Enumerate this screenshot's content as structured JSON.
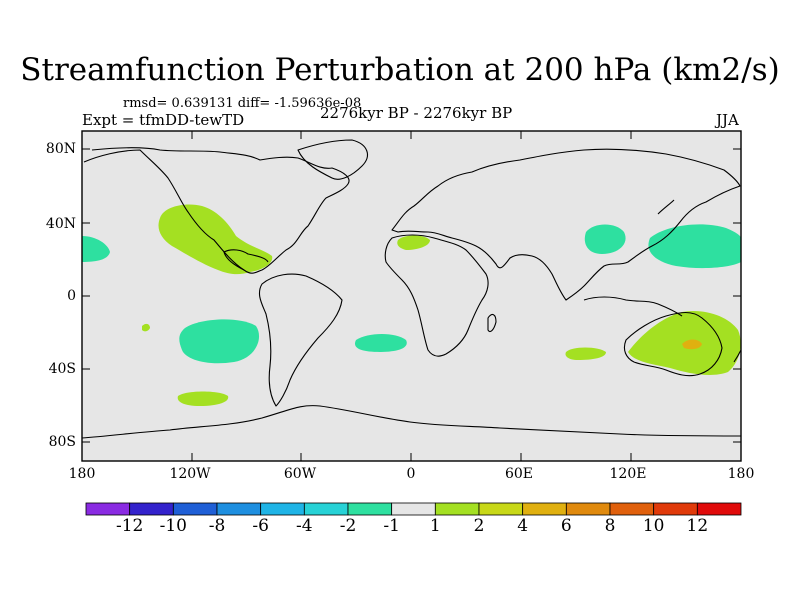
{
  "title": "Streamfunction Perturbation at 200 hPa (km2/s)",
  "stats_text": "rmsd= 0.639131 diff= -1.59636e-08",
  "experiment": "Expt = tfmDD-tewTD",
  "period": "2276kyr BP - 2276kyr BP",
  "season": "JJA",
  "axes": {
    "lat_labels": [
      "80N",
      "40N",
      "0",
      "40S",
      "80S"
    ],
    "lon_labels": [
      "180",
      "120W",
      "60W",
      "0",
      "60E",
      "120E",
      "180"
    ]
  },
  "colorbar": {
    "labels": [
      "-12",
      "-10",
      "-8",
      "-6",
      "-4",
      "-2",
      "-1",
      "1",
      "2",
      "4",
      "6",
      "8",
      "10",
      "12"
    ],
    "colors": [
      "#8a2be2",
      "#3322cc",
      "#1f5fd6",
      "#1e8fe0",
      "#1fb4e6",
      "#27d2d6",
      "#2ee0a0",
      "#e6e6e6",
      "#a4e022",
      "#c8d818",
      "#e0b010",
      "#e08a0e",
      "#e0600c",
      "#e03a0a",
      "#e00a0a"
    ]
  },
  "map_colors": {
    "background": "#e6e6e6",
    "coast": "#000000",
    "neg_fill": "#2ee0a0",
    "pos_fill": "#a4e022",
    "pos_strong": "#e0b010"
  }
}
